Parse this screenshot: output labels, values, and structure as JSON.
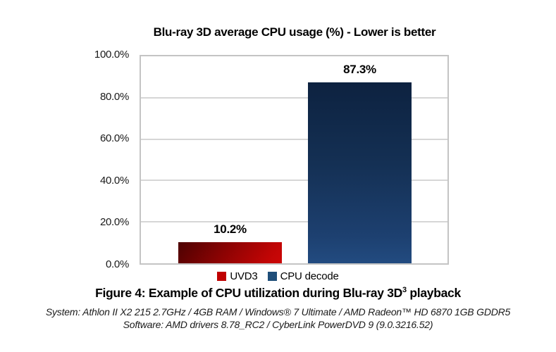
{
  "chart_data": {
    "type": "bar",
    "title": "Blu-ray 3D average CPU usage (%) - Lower is better",
    "categories": [
      "UVD3",
      "CPU decode"
    ],
    "values": [
      10.2,
      87.3
    ],
    "value_labels": [
      "10.2%",
      "87.3%"
    ],
    "ylim": [
      0,
      100
    ],
    "ytick_step": 20,
    "ytick_labels": [
      "100.0%",
      "80.0%",
      "60.0%",
      "40.0%",
      "20.0%",
      "0.0%"
    ],
    "grid": true,
    "legend_position": "bottom",
    "series_colors": {
      "UVD3": "#c00000",
      "CPU decode": "#1f4e79"
    }
  },
  "legend": {
    "items": [
      {
        "label": "UVD3",
        "color": "#c00000"
      },
      {
        "label": "CPU decode",
        "color": "#1f4e79"
      }
    ]
  },
  "caption": {
    "prefix": "Figure 4: Example of CPU utilization during Blu-ray 3D",
    "superscript": "3",
    "suffix": " playback"
  },
  "footnotes": {
    "system": "System: Athlon II X2 215 2.7GHz / 4GB RAM / Windows® 7 Ultimate / AMD Radeon™ HD 6870 1GB GDDR5",
    "software": "Software: AMD drivers 8.78_RC2 / CyberLink PowerDVD 9 (9.0.3216.52)"
  }
}
